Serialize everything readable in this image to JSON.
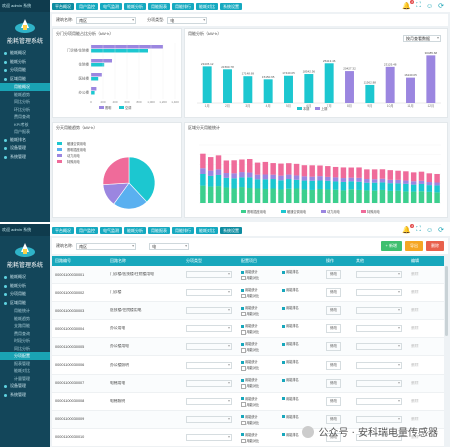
{
  "app": {
    "title": "能耗管理系统",
    "top_user": "欢迎 admin 系统",
    "tabs": [
      "平台概况",
      "用户监控",
      "电气监测",
      "能耗分析",
      "用能报表",
      "用能排行",
      "能耗对比",
      "系统设置"
    ],
    "notify_count": "2"
  },
  "sidebar": {
    "items_s1": [
      {
        "label": "能耗概况",
        "sub": false
      },
      {
        "label": "能耗分析",
        "sub": false
      },
      {
        "label": "分项用能",
        "sub": false
      },
      {
        "label": "区域用能",
        "sub": false
      },
      {
        "label": "用能概况",
        "sub": true,
        "active": true
      },
      {
        "label": "能耗趋势",
        "sub": true
      },
      {
        "label": "同比分析",
        "sub": true
      },
      {
        "label": "环比分析",
        "sub": true
      },
      {
        "label": "费用查询",
        "sub": true
      },
      {
        "label": "KPI考核",
        "sub": true
      },
      {
        "label": "用户报表",
        "sub": true
      },
      {
        "label": "能耗排名",
        "sub": false
      },
      {
        "label": "设备管理",
        "sub": false
      },
      {
        "label": "系统管理",
        "sub": false
      }
    ],
    "items_s2": [
      {
        "label": "能耗概况",
        "sub": false
      },
      {
        "label": "能耗分析",
        "sub": false
      },
      {
        "label": "分项用能",
        "sub": false
      },
      {
        "label": "区域用能",
        "sub": false
      },
      {
        "label": "用能统计",
        "sub": true
      },
      {
        "label": "能耗趋势",
        "sub": true
      },
      {
        "label": "支路用能",
        "sub": true
      },
      {
        "label": "费用查询",
        "sub": true
      },
      {
        "label": "时段分析",
        "sub": true
      },
      {
        "label": "同比分析",
        "sub": true
      },
      {
        "label": "分项配置",
        "sub": true,
        "active": true
      },
      {
        "label": "报表管理",
        "sub": true
      },
      {
        "label": "能耗对比",
        "sub": true
      },
      {
        "label": "计量管理",
        "sub": true
      },
      {
        "label": "设备管理",
        "sub": false
      },
      {
        "label": "系统管理",
        "sub": false
      }
    ]
  },
  "filter": {
    "building_label": "建筑名称:",
    "building_value": "南区",
    "type_label": "分项类型:",
    "type_value": "电"
  },
  "panels": {
    "p1_title": "分门分项用能占比分析（kW·h）",
    "p2_title": "用能分析（kW·h）",
    "p2_select": "按月查看数据",
    "p3_title": "分天用能趋势（kW·h）",
    "p4_title": "区域分天用能统计"
  },
  "colors": {
    "teal": "#1cc7d0",
    "purple": "#9b86e0",
    "pink": "#ef6b9a",
    "green": "#3ccf8e",
    "blue": "#5ab0f0"
  },
  "chart_data": [
    {
      "type": "bar",
      "orientation": "horizontal",
      "categories": [
        "门诊楼/住院楼",
        "住院楼",
        "医技楼",
        "办公楼"
      ],
      "series": [
        {
          "name": "照明",
          "values": [
            1200,
            350,
            180,
            90
          ]
        },
        {
          "name": "空调",
          "values": [
            950,
            220,
            120,
            60
          ]
        }
      ],
      "xlim": [
        0,
        1400
      ],
      "xticks": [
        "0",
        "200",
        "400",
        "600",
        "800",
        "1,000",
        "1,200",
        "1,400"
      ]
    },
    {
      "type": "bar",
      "categories": [
        "1月",
        "2月",
        "3月",
        "4月",
        "5月",
        "6月",
        "7月",
        "8月",
        "9月",
        "10月",
        "11月",
        "12月"
      ],
      "values": [
        23445.12,
        21560.78,
        17148.69,
        15150.65,
        17440.05,
        18542.56,
        25413.46,
        20427.32,
        11562.88,
        23129.48,
        16240.05,
        30485.68
      ],
      "labels": [
        "23445.12",
        "21560.78",
        "17148.69",
        "15150.65",
        "17440.05",
        "18542.56",
        "25413.46",
        "20427.32",
        "11562.88",
        "23129.48",
        "16240.05",
        "30485.68"
      ],
      "series_colors": [
        "teal",
        "teal",
        "teal",
        "teal",
        "teal",
        "teal",
        "teal",
        "purple",
        "teal",
        "purple",
        "purple",
        "purple"
      ],
      "legend": [
        "本期",
        "上期"
      ]
    },
    {
      "type": "pie",
      "slices": [
        {
          "name": "暖通空调用电",
          "value": 38,
          "color": "teal"
        },
        {
          "name": "照明插座用电",
          "value": 22,
          "color": "blue"
        },
        {
          "name": "动力用电",
          "value": 14,
          "color": "purple"
        },
        {
          "name": "特殊用电",
          "value": 26,
          "color": "pink"
        }
      ]
    },
    {
      "type": "bar",
      "stacked": true,
      "days": 31,
      "series": [
        {
          "name": "照明插座用电",
          "values": [
            180,
            170,
            175,
            160,
            150,
            165,
            155,
            150,
            145,
            150,
            140,
            148,
            150,
            140,
            135,
            145,
            140,
            138,
            130,
            142,
            135,
            130,
            128,
            135,
            125,
            128,
            120,
            118,
            122,
            115,
            110
          ],
          "color": "green"
        },
        {
          "name": "暖通空调用电",
          "values": [
            120,
            110,
            115,
            100,
            105,
            100,
            110,
            95,
            100,
            98,
            95,
            100,
            90,
            92,
            95,
            88,
            90,
            85,
            88,
            82,
            85,
            80,
            82,
            78,
            80,
            75,
            78,
            72,
            75,
            70,
            72
          ],
          "color": "teal"
        },
        {
          "name": "动力用电",
          "values": [
            60,
            55,
            58,
            50,
            52,
            55,
            50,
            48,
            50,
            45,
            48,
            46,
            45,
            44,
            42,
            45,
            40,
            42,
            40,
            38,
            40,
            38,
            36,
            38,
            35,
            36,
            34,
            35,
            33,
            32,
            30
          ],
          "color": "purple"
        },
        {
          "name": "特殊用电",
          "values": [
            150,
            140,
            145,
            130,
            135,
            130,
            140,
            125,
            130,
            120,
            125,
            118,
            120,
            115,
            118,
            110,
            112,
            108,
            110,
            105,
            108,
            100,
            102,
            98,
            100,
            95,
            96,
            92,
            94,
            90,
            88
          ],
          "color": "pink"
        }
      ],
      "ylim": [
        0,
        600
      ]
    }
  ],
  "table": {
    "filter_label": "建筑名称:",
    "filter_value": "南区",
    "filter_type": "电",
    "buttons": {
      "add": "+ 新增",
      "export": "导出",
      "delete": "删除"
    },
    "headers": [
      "回路编号",
      "回路名称",
      "分项类型",
      "配置项目",
      "操作",
      "其他",
      "编辑"
    ],
    "rows": [
      {
        "code": "00001100030001",
        "name": "门诊楼/医技楼/住院楼用电",
        "opts": [
          "用能统计",
          "用能排名",
          "用能对比"
        ],
        "btn": "修改",
        "extra": "删除"
      },
      {
        "code": "00001100030002",
        "name": "门诊楼",
        "opts": [
          "用能统计",
          "用能排名",
          "用能对比"
        ],
        "btn": "修改",
        "extra": "删除"
      },
      {
        "code": "00001100030003",
        "name": "医技楼/住院楼用电",
        "opts": [
          "用能统计",
          "用能排名",
          "用能对比"
        ],
        "btn": "修改",
        "extra": "删除"
      },
      {
        "code": "00001100030004",
        "name": "办公用电",
        "opts": [
          "用能统计",
          "用能排名",
          "用能对比"
        ],
        "btn": "修改",
        "extra": "删除"
      },
      {
        "code": "00001100030005",
        "name": "办公楼用电",
        "opts": [
          "用能统计",
          "用能排名",
          "用能对比"
        ],
        "btn": "修改",
        "extra": "删除"
      },
      {
        "code": "00001100030006",
        "name": "办公楼照明",
        "opts": [
          "用能统计",
          "用能排名",
          "用能对比"
        ],
        "btn": "修改",
        "extra": "删除"
      },
      {
        "code": "00001100030007",
        "name": "电梯用电",
        "opts": [
          "用能统计",
          "用能排名",
          "用能对比"
        ],
        "btn": "修改",
        "extra": "删除"
      },
      {
        "code": "00001100030008",
        "name": "电梯照明",
        "opts": [
          "用能统计",
          "用能排名",
          "用能对比"
        ],
        "btn": "修改",
        "extra": "删除"
      },
      {
        "code": "00001100030009",
        "name": "",
        "opts": [
          "用能统计",
          "用能排名",
          "用能对比"
        ],
        "btn": "修改",
        "extra": "删除"
      },
      {
        "code": "00001100030010",
        "name": "",
        "opts": [
          "用能统计",
          "用能排名",
          "用能对比"
        ],
        "btn": "修改",
        "extra": "删除"
      }
    ]
  },
  "watermark": "公众号 · 安科瑞电量传感器"
}
